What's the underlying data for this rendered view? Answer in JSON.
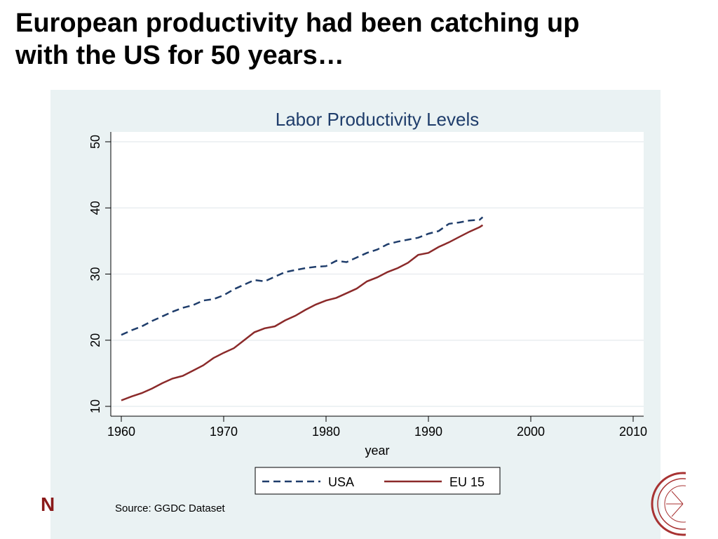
{
  "slide": {
    "title_line1": "European productivity had been catching up",
    "title_line2": "with the US for 50 years…",
    "logo_letter": "N",
    "seal_icon": "university-seal-icon"
  },
  "chart_data": {
    "type": "line",
    "title": "Labor Productivity Levels",
    "xlabel": "year",
    "ylabel": "",
    "xlim": [
      1960,
      2010
    ],
    "ylim": [
      10,
      50
    ],
    "x_ticks": [
      1960,
      1970,
      1980,
      1990,
      2000,
      2010
    ],
    "y_ticks": [
      10,
      20,
      30,
      40,
      50
    ],
    "grid": "horizontal",
    "legend_position": "bottom",
    "x": [
      1960,
      1961,
      1962,
      1963,
      1964,
      1965,
      1966,
      1967,
      1968,
      1969,
      1970,
      1971,
      1972,
      1973,
      1974,
      1975,
      1976,
      1977,
      1978,
      1979,
      1980,
      1981,
      1982,
      1983,
      1984,
      1985,
      1986,
      1987,
      1988,
      1989,
      1990,
      1991,
      1992,
      1993,
      1994,
      1995,
      1995.3
    ],
    "series": [
      {
        "name": "USA",
        "style": "dashed",
        "color": "#1f3d6b",
        "values": [
          20.8,
          21.5,
          22.1,
          22.9,
          23.6,
          24.3,
          24.9,
          25.3,
          26.0,
          26.2,
          26.8,
          27.7,
          28.4,
          29.1,
          28.9,
          29.6,
          30.3,
          30.6,
          30.9,
          31.1,
          31.2,
          32.0,
          31.8,
          32.5,
          33.2,
          33.7,
          34.5,
          34.9,
          35.2,
          35.5,
          36.1,
          36.5,
          37.6,
          37.8,
          38.1,
          38.2,
          38.6
        ]
      },
      {
        "name": "EU 15",
        "style": "solid",
        "color": "#8b2a2a",
        "values": [
          10.9,
          11.5,
          12.0,
          12.7,
          13.5,
          14.2,
          14.6,
          15.4,
          16.2,
          17.3,
          18.1,
          18.8,
          20.0,
          21.2,
          21.8,
          22.1,
          23.0,
          23.7,
          24.6,
          25.4,
          26.0,
          26.4,
          27.1,
          27.8,
          28.9,
          29.5,
          30.3,
          30.9,
          31.7,
          32.9,
          33.2,
          34.1,
          34.8,
          35.6,
          36.4,
          37.1,
          37.4
        ]
      }
    ],
    "source": "Source: GGDC Dataset"
  }
}
